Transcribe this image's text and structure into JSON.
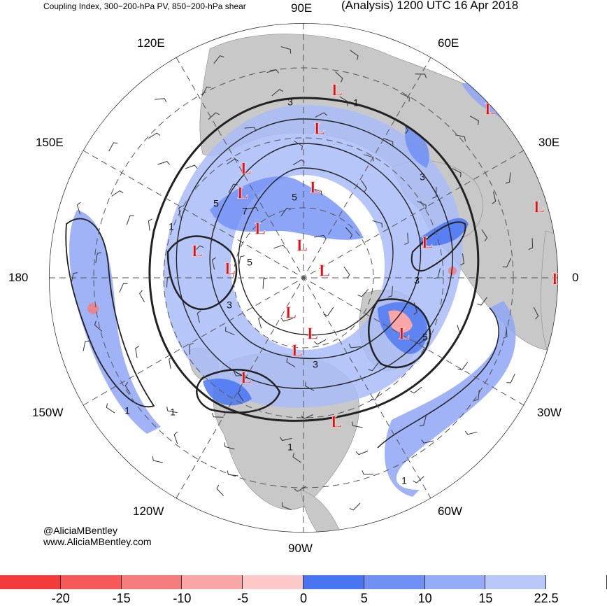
{
  "header": {
    "title_left": "Coupling Index, 300−200-hPa PV, 850−200-hPa shear",
    "title_right": "(Analysis) 1200 UTC 16 Apr 2018"
  },
  "longitude_labels": {
    "lon_90e": "90E",
    "lon_120e": "120E",
    "lon_60e": "60E",
    "lon_150e": "150E",
    "lon_30e": "30E",
    "lon_180": "180",
    "lon_0": "0",
    "lon_150w": "150W",
    "lon_30w": "30W",
    "lon_120w": "120W",
    "lon_60w": "60W",
    "lon_90w": "90W"
  },
  "credits": {
    "handle": "@AliciaMBentley",
    "website": "www.AliciaMBentley.com"
  },
  "low_marker": "L",
  "contour_labels": [
    "3",
    "1",
    "3",
    "5",
    "5",
    "7",
    "1",
    "5",
    "3",
    "3",
    "5",
    "3",
    "1",
    "1",
    "1",
    "1"
  ],
  "colorbar": {
    "colors": [
      "#f23b3b",
      "#f65757",
      "#f57c7c",
      "#f8a6a6",
      "#fdc8c8",
      "#4a75f2",
      "#6f8ff5",
      "#96acf6",
      "#b8c6f8",
      "#ffffff"
    ],
    "labels": [
      "-20",
      "-15",
      "-10",
      "-5",
      "0",
      "5",
      "10",
      "15",
      "22.5"
    ]
  },
  "colors": {
    "land": "#c8c8c8",
    "shading_blue": "#6f8ff5",
    "shading_light": "#aabcf7",
    "low_red": "#e01010",
    "contour": "#222222"
  }
}
